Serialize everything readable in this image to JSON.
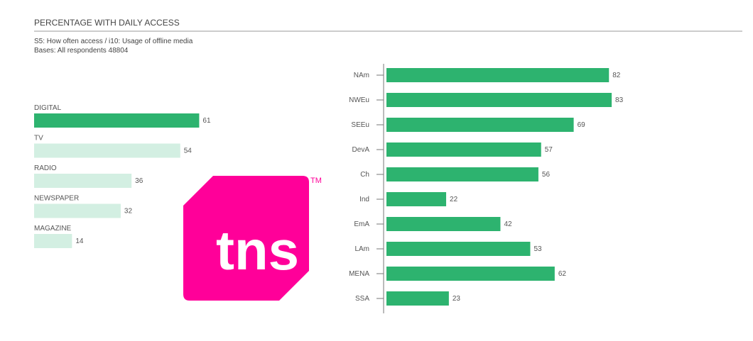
{
  "header": {
    "title": "PERCENTAGE WITH DAILY ACCESS",
    "notes": [
      "S5: How often access / i10: Usage of offline media",
      "Bases: All respondents 48804"
    ]
  },
  "logo": {
    "text": "tns",
    "mark": "TM"
  },
  "chart_data": [
    {
      "type": "bar",
      "orientation": "horizontal",
      "label_position": "above",
      "categories": [
        "DIGITAL",
        "TV",
        "RADIO",
        "NEWSPAPER",
        "MAGAZINE"
      ],
      "values": [
        61,
        54,
        36,
        32,
        14
      ],
      "colors": [
        "#2db36f",
        "#d3efe2",
        "#d3efe2",
        "#d3efe2",
        "#d3efe2"
      ]
    },
    {
      "type": "bar",
      "orientation": "horizontal",
      "label_position": "left",
      "categories": [
        "NAm",
        "NWEu",
        "SEEu",
        "DevA",
        "Ch",
        "Ind",
        "EmA",
        "LAm",
        "MENA",
        "SSA"
      ],
      "values": [
        82,
        83,
        69,
        57,
        56,
        22,
        42,
        53,
        62,
        23
      ],
      "color": "#2db36f"
    }
  ]
}
